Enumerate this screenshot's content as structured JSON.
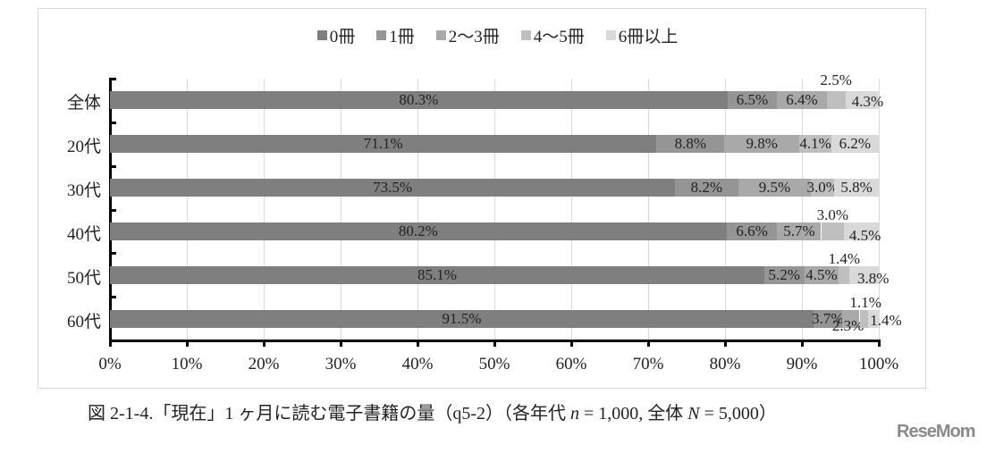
{
  "chart_data": {
    "type": "bar",
    "orientation": "horizontal",
    "stacked": "percent",
    "title": "",
    "xlabel": "",
    "ylabel": "",
    "xlim": [
      0,
      100
    ],
    "grid": true,
    "legend_position": "top",
    "categories": [
      "全体",
      "20代",
      "30代",
      "40代",
      "50代",
      "60代"
    ],
    "x_ticks": [
      "0%",
      "10%",
      "20%",
      "30%",
      "40%",
      "50%",
      "60%",
      "70%",
      "80%",
      "90%",
      "100%"
    ],
    "series": [
      {
        "name": "0冊",
        "color": "#7f7f7f",
        "values": [
          80.3,
          71.1,
          73.5,
          80.2,
          85.1,
          91.5
        ]
      },
      {
        "name": "1冊",
        "color": "#959595",
        "values": [
          6.5,
          8.8,
          8.2,
          6.6,
          5.2,
          3.7
        ]
      },
      {
        "name": "2～3冊",
        "color": "#a9a9a9",
        "values": [
          6.4,
          9.8,
          9.5,
          5.7,
          4.5,
          2.3
        ]
      },
      {
        "name": "4～5冊",
        "color": "#bfbfbf",
        "values": [
          2.5,
          4.1,
          3.0,
          3.0,
          1.4,
          1.1
        ]
      },
      {
        "name": "6冊以上",
        "color": "#d9d9d9",
        "values": [
          4.3,
          6.2,
          5.8,
          4.5,
          3.8,
          1.4
        ]
      }
    ],
    "caption": "図 2-1-4.「現在」1 ヶ月に読む電子書籍の量（q5-2）（各年代 n = 1,000, 全体 N = 5,000）"
  },
  "legend": [
    {
      "label": "0冊",
      "color": "#7f7f7f"
    },
    {
      "label": "1冊",
      "color": "#959595"
    },
    {
      "label": "2～3冊",
      "color": "#a9a9a9"
    },
    {
      "label": "4～5冊",
      "color": "#bfbfbf"
    },
    {
      "label": "6冊以上",
      "color": "#d9d9d9"
    }
  ],
  "caption": {
    "prefix": "図 2-1-4.「現在」1 ヶ月に読む電子書籍の量（q5-2）（各年代 ",
    "n_symbol": "n",
    "n_value": " = 1,000, 全体 ",
    "N_symbol": "N",
    "N_value": " = 5,000）"
  },
  "watermark": "ReseMom"
}
